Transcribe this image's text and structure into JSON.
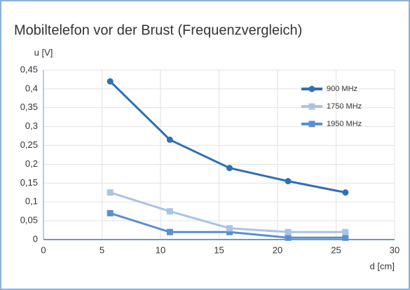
{
  "chart_data": {
    "type": "line",
    "title": "Mobiltelefon vor der Brust (Frequenzvergleich)",
    "y_label": "u [V]",
    "x_label": "d [cm]",
    "x": [
      5.7,
      10.8,
      15.9,
      20.9,
      25.8
    ],
    "series": [
      {
        "name": "900 MHz",
        "color": "#2f6fb5",
        "marker": "circle",
        "values": [
          0.42,
          0.265,
          0.19,
          0.155,
          0.125
        ]
      },
      {
        "name": "1750 MHz",
        "color": "#a9c4e4",
        "marker": "square",
        "values": [
          0.125,
          0.075,
          0.03,
          0.02,
          0.02
        ]
      },
      {
        "name": "1950 MHz",
        "color": "#5b8fd0",
        "marker": "square",
        "values": [
          0.07,
          0.02,
          0.02,
          0.005,
          0.005
        ]
      }
    ],
    "xlim": [
      0,
      30
    ],
    "xticks": [
      0,
      5,
      10,
      15,
      20,
      25,
      30
    ],
    "ylim": [
      0,
      0.45
    ],
    "yticks": [
      0,
      {
        "value": 0.05,
        "label": "0,05"
      },
      {
        "value": 0.1,
        "label": "0,1"
      },
      {
        "value": 0.15,
        "label": "0,15"
      },
      {
        "value": 0.2,
        "label": "0,2"
      },
      {
        "value": 0.25,
        "label": "0,25"
      },
      {
        "value": 0.3,
        "label": "0,3"
      },
      {
        "value": 0.35,
        "label": "0,35"
      },
      {
        "value": 0.4,
        "label": "0,4"
      },
      {
        "value": 0.45,
        "label": "0,45"
      }
    ],
    "grid": true,
    "legend": "upper right"
  }
}
